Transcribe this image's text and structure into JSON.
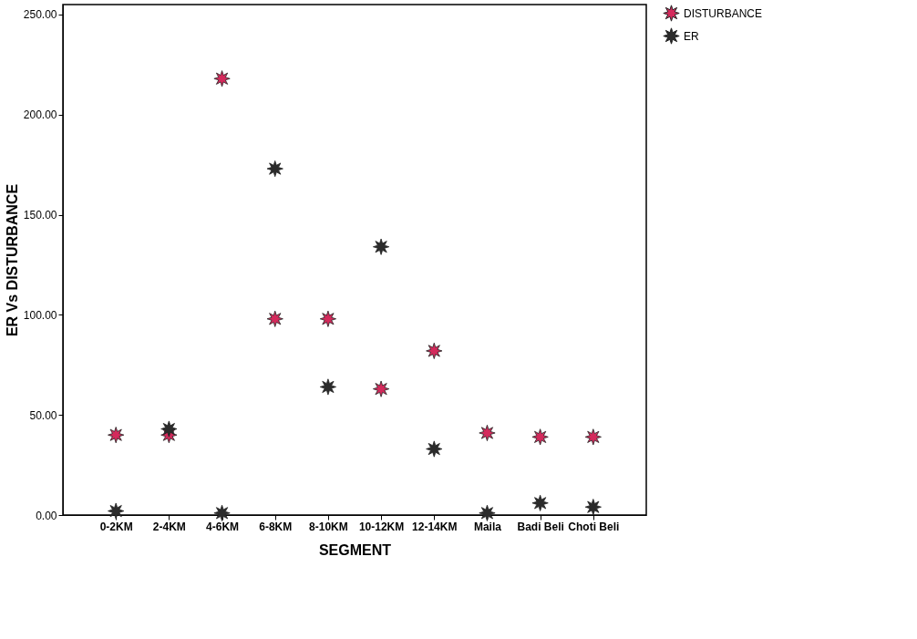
{
  "chart_data": {
    "type": "scatter",
    "xlabel": "SEGMENT",
    "ylabel": "ER Vs DISTURBANCE",
    "categories": [
      "0-2KM",
      "2-4KM",
      "4-6KM",
      "6-8KM",
      "8-10KM",
      "10-12KM",
      "12-14KM",
      "Maila",
      "Badi Beli",
      "Choti Beli"
    ],
    "series": [
      {
        "name": "DISTURBANCE",
        "color": "#d42a5c",
        "values": [
          40,
          40,
          218,
          98,
          98,
          63,
          82,
          41,
          39,
          39
        ]
      },
      {
        "name": "ER",
        "color": "#2b2b2b",
        "values": [
          2,
          43,
          1,
          173,
          64,
          134,
          33,
          1,
          6,
          4
        ]
      }
    ],
    "ylim": [
      0,
      255
    ],
    "yticks": [
      {
        "value": 0,
        "label": "0.00"
      },
      {
        "value": 50,
        "label": "50.00"
      },
      {
        "value": 100,
        "label": "100.00"
      },
      {
        "value": 150,
        "label": "150.00"
      },
      {
        "value": 200,
        "label": "200.00"
      },
      {
        "value": 250,
        "label": "250.00"
      }
    ],
    "marker": "star",
    "legend": "top right",
    "grid": false
  }
}
